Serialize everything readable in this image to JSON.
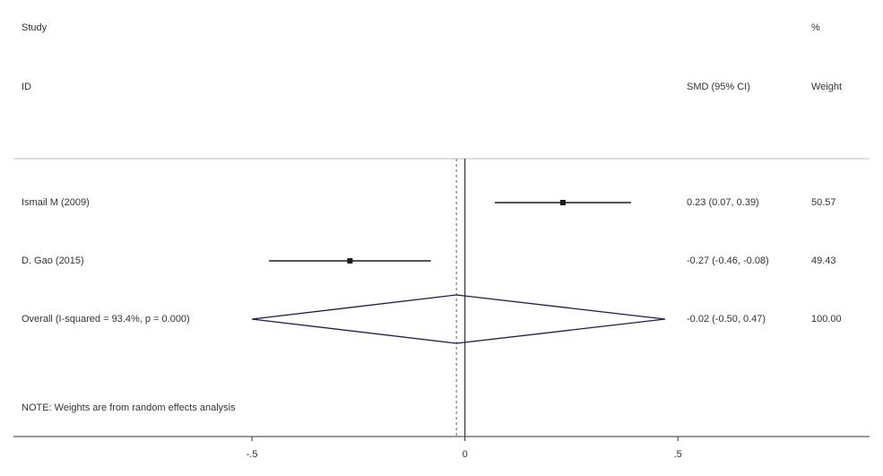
{
  "chart_data": {
    "type": "forest",
    "headers": {
      "study_top": "Study",
      "study_bottom": "ID",
      "effect": "SMD (95% CI)",
      "weight_top": "%",
      "weight_bottom": "Weight"
    },
    "categories": [
      "Ismail M (2009)",
      "D. Gao (2015)",
      "Overall  (I-squared = 93.4%, p = 0.000)"
    ],
    "values": [
      0.23,
      -0.27,
      -0.02
    ],
    "ci_low": [
      0.07,
      -0.46,
      -0.5
    ],
    "ci_high": [
      0.39,
      -0.08,
      0.47
    ],
    "value_labels": [
      "0.23 (0.07, 0.39)",
      "-0.27 (-0.46, -0.08)",
      "-0.02 (-0.50, 0.47)"
    ],
    "weights": [
      50.57,
      49.43,
      100
    ],
    "weight_labels": [
      "50.57",
      "49.43",
      "100.00"
    ],
    "overall": [
      false,
      false,
      true
    ],
    "note": "NOTE: Weights are from random effects analysis",
    "xlim": [
      -1.06,
      0.95
    ],
    "xticks": [
      {
        "value": -0.5,
        "label": "-.5"
      },
      0,
      {
        "value": 0.5,
        "label": ".5"
      }
    ],
    "color": "#1a1a1a",
    "diamond_color": "#1c1c5a",
    "reference_color": "#c0392b"
  }
}
